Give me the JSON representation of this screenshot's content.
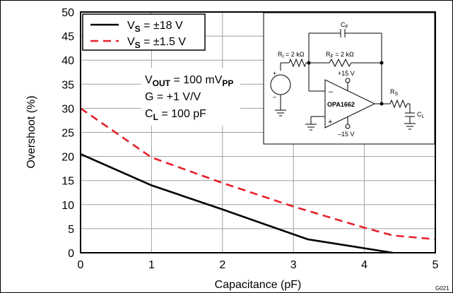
{
  "chart_data": {
    "type": "line",
    "xlabel": "Capacitance (pF)",
    "ylabel": "Overshoot (%)",
    "xlim": [
      0,
      5
    ],
    "ylim": [
      0,
      50
    ],
    "xticks": [
      "0",
      "1",
      "2",
      "3",
      "4",
      "5"
    ],
    "yticks": [
      "0",
      "5",
      "10",
      "15",
      "20",
      "25",
      "30",
      "35",
      "40",
      "45",
      "50"
    ],
    "grid": true,
    "legend_position": "top-left",
    "figure_id": "G021",
    "series": [
      {
        "name_main": "V",
        "name_sub": "S",
        "name_tail": " = ±18 V",
        "color": "#000000",
        "style": "solid",
        "x": [
          0,
          1,
          2,
          3.2,
          4.4
        ],
        "y": [
          20.5,
          14,
          9,
          2.8,
          0
        ]
      },
      {
        "name_main": "V",
        "name_sub": "S",
        "name_tail": " = ±1.5 V",
        "color": "#e8202a",
        "style": "dashed",
        "x": [
          0,
          1,
          2,
          3,
          4,
          4.4,
          5
        ],
        "y": [
          30,
          19.8,
          14.5,
          9.6,
          5.2,
          3.6,
          2.8
        ]
      }
    ],
    "conditions": [
      {
        "main": "V",
        "sub": "OUT",
        "tail": " = 100 mV",
        "sub2": "PP"
      },
      {
        "main": "G = +1 V/V"
      },
      {
        "main": "C",
        "sub": "L",
        "tail": " = 100 pF"
      }
    ],
    "schematic": {
      "cf": {
        "main": "C",
        "sub": "F"
      },
      "ri": {
        "main": "R",
        "sub": "I",
        "tail": " = 2 kΩ"
      },
      "rf": {
        "main": "R",
        "sub": "F",
        "tail": " = 2 kΩ"
      },
      "rs": {
        "main": "R",
        "sub": "S"
      },
      "cl": {
        "main": "C",
        "sub": "L"
      },
      "vpos": "+15 V",
      "vneg": "–15 V",
      "opamp": "OPA1662",
      "minus": "–",
      "plus": "+",
      "src_plus": "+",
      "src_minus": "–"
    }
  }
}
